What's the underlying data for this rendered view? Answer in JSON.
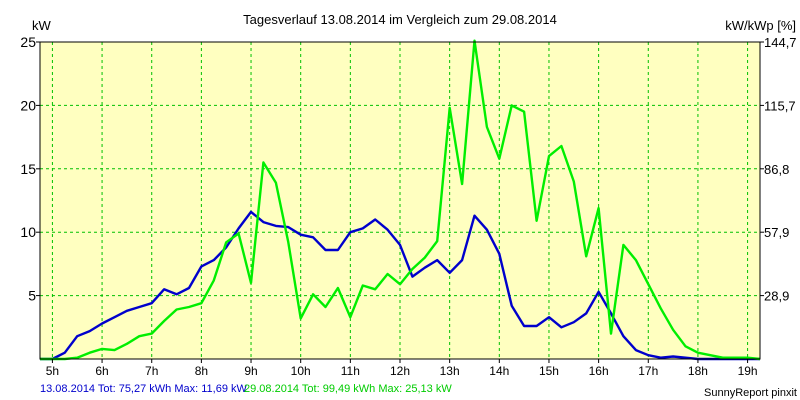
{
  "chart_data": {
    "type": "line",
    "title": "Tagesverlauf 13.08.2014 im Vergleich zum 29.08.2014",
    "ylabel_left": "kW",
    "ylabel_right": "kW/kWp [%]",
    "ylim": [
      0,
      25
    ],
    "xlim": [
      4.75,
      19.25
    ],
    "x_ticks": [
      5,
      6,
      7,
      8,
      9,
      10,
      11,
      12,
      13,
      14,
      15,
      16,
      17,
      18,
      19
    ],
    "x_tick_labels": [
      "5h",
      "6h",
      "7h",
      "8h",
      "9h",
      "10h",
      "11h",
      "12h",
      "13h",
      "14h",
      "15h",
      "16h",
      "17h",
      "18h",
      "19h"
    ],
    "y_ticks": [
      5,
      10,
      15,
      20,
      25
    ],
    "y_tick_labels": [
      "5",
      "10",
      "15",
      "20",
      "25"
    ],
    "y2_ticks": [
      5,
      10,
      15,
      20,
      25
    ],
    "y2_tick_labels": [
      "28,9",
      "57,9",
      "86,8",
      "115,7",
      "144,7"
    ],
    "grid": true,
    "colors": {
      "background": "#ffffc0",
      "grid": "#00c000",
      "border": "#000000"
    },
    "series": [
      {
        "name": "13.08.2014 Tot: 75,27 kWh Max: 11,69 kW",
        "color": "#0000cc",
        "points": [
          [
            4.75,
            0
          ],
          [
            5.0,
            0
          ],
          [
            5.25,
            0.5
          ],
          [
            5.5,
            1.8
          ],
          [
            5.75,
            2.2
          ],
          [
            6.0,
            2.8
          ],
          [
            6.25,
            3.3
          ],
          [
            6.5,
            3.8
          ],
          [
            6.75,
            4.1
          ],
          [
            7.0,
            4.4
          ],
          [
            7.25,
            5.5
          ],
          [
            7.5,
            5.1
          ],
          [
            7.75,
            5.6
          ],
          [
            8.0,
            7.3
          ],
          [
            8.25,
            7.8
          ],
          [
            8.5,
            8.8
          ],
          [
            8.75,
            10.3
          ],
          [
            9.0,
            11.6
          ],
          [
            9.25,
            10.8
          ],
          [
            9.5,
            10.5
          ],
          [
            9.75,
            10.4
          ],
          [
            10.0,
            9.8
          ],
          [
            10.25,
            9.6
          ],
          [
            10.5,
            8.6
          ],
          [
            10.75,
            8.6
          ],
          [
            11.0,
            10.0
          ],
          [
            11.25,
            10.3
          ],
          [
            11.5,
            11.0
          ],
          [
            11.75,
            10.2
          ],
          [
            12.0,
            9.0
          ],
          [
            12.25,
            6.5
          ],
          [
            12.5,
            7.2
          ],
          [
            12.75,
            7.8
          ],
          [
            13.0,
            6.8
          ],
          [
            13.25,
            7.8
          ],
          [
            13.5,
            11.3
          ],
          [
            13.75,
            10.2
          ],
          [
            14.0,
            8.3
          ],
          [
            14.25,
            4.2
          ],
          [
            14.5,
            2.6
          ],
          [
            14.75,
            2.6
          ],
          [
            15.0,
            3.3
          ],
          [
            15.25,
            2.5
          ],
          [
            15.5,
            2.9
          ],
          [
            15.75,
            3.6
          ],
          [
            16.0,
            5.3
          ],
          [
            16.25,
            3.6
          ],
          [
            16.5,
            1.8
          ],
          [
            16.75,
            0.7
          ],
          [
            17.0,
            0.3
          ],
          [
            17.25,
            0.1
          ],
          [
            17.5,
            0.2
          ],
          [
            17.75,
            0.1
          ],
          [
            18.0,
            0
          ],
          [
            19.25,
            0
          ]
        ]
      },
      {
        "name": "29.08.2014 Tot: 99,49 kWh Max: 25,13 kW",
        "color": "#00ee00",
        "points": [
          [
            4.75,
            0
          ],
          [
            5.25,
            0
          ],
          [
            5.5,
            0.1
          ],
          [
            5.75,
            0.5
          ],
          [
            6.0,
            0.8
          ],
          [
            6.25,
            0.7
          ],
          [
            6.5,
            1.2
          ],
          [
            6.75,
            1.8
          ],
          [
            7.0,
            2.0
          ],
          [
            7.25,
            3.0
          ],
          [
            7.5,
            3.9
          ],
          [
            7.75,
            4.1
          ],
          [
            8.0,
            4.4
          ],
          [
            8.25,
            6.2
          ],
          [
            8.5,
            9.2
          ],
          [
            8.75,
            9.9
          ],
          [
            9.0,
            6.0
          ],
          [
            9.25,
            15.5
          ],
          [
            9.5,
            13.9
          ],
          [
            9.75,
            9.2
          ],
          [
            10.0,
            3.2
          ],
          [
            10.25,
            5.1
          ],
          [
            10.5,
            4.1
          ],
          [
            10.75,
            5.6
          ],
          [
            11.0,
            3.3
          ],
          [
            11.25,
            5.8
          ],
          [
            11.5,
            5.5
          ],
          [
            11.75,
            6.7
          ],
          [
            12.0,
            5.9
          ],
          [
            12.25,
            7.1
          ],
          [
            12.5,
            8.0
          ],
          [
            12.75,
            9.3
          ],
          [
            13.0,
            19.8
          ],
          [
            13.25,
            13.8
          ],
          [
            13.5,
            25.1
          ],
          [
            13.75,
            18.3
          ],
          [
            14.0,
            15.8
          ],
          [
            14.25,
            20.0
          ],
          [
            14.5,
            19.5
          ],
          [
            14.75,
            10.9
          ],
          [
            15.0,
            16.0
          ],
          [
            15.25,
            16.8
          ],
          [
            15.5,
            14.0
          ],
          [
            15.75,
            8.1
          ],
          [
            16.0,
            11.9
          ],
          [
            16.25,
            2.0
          ],
          [
            16.5,
            9.0
          ],
          [
            16.75,
            7.8
          ],
          [
            17.0,
            5.9
          ],
          [
            17.25,
            4.0
          ],
          [
            17.5,
            2.3
          ],
          [
            17.75,
            1.0
          ],
          [
            18.0,
            0.5
          ],
          [
            18.25,
            0.3
          ],
          [
            18.5,
            0.1
          ],
          [
            18.75,
            0.1
          ],
          [
            19.0,
            0.1
          ],
          [
            19.25,
            0
          ]
        ]
      }
    ],
    "footer_credit": "SunnyReport pinxit"
  }
}
